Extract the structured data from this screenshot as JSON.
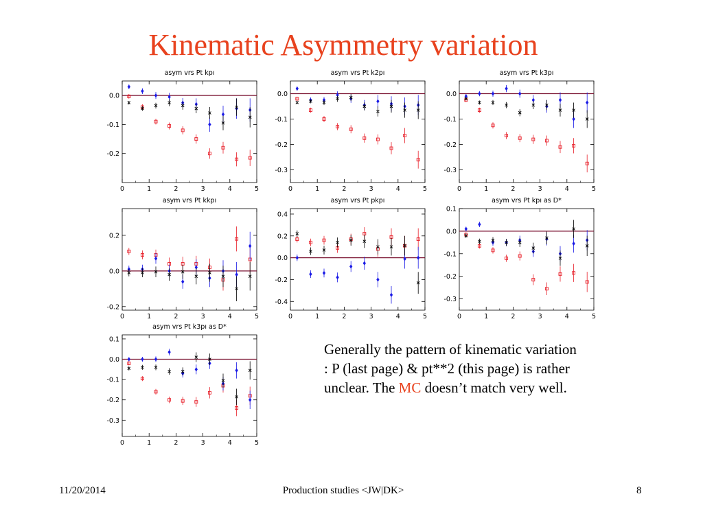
{
  "title": "Kinematic Asymmetry variation",
  "notes": {
    "text_before": "Generally the pattern of kinematic variation : P (last page) & pt**2 (this page) is rather unclear. The ",
    "highlight": "MC",
    "text_after": " doesn’t match very well."
  },
  "footer": {
    "date": "11/20/2014",
    "center": "Production studies <JW|DK>",
    "page": "8"
  },
  "colors": {
    "title": "#e8421e",
    "red_series": "#e8202a",
    "blue_series": "#1a1ae6",
    "black_series": "#000000",
    "zero_line": "#7a1230"
  },
  "chart_data": [
    {
      "type": "scatter",
      "title": "asym vrs Pt kpı",
      "x": [
        0.25,
        0.75,
        1.25,
        1.75,
        2.25,
        2.75,
        3.25,
        3.75,
        4.25,
        4.75
      ],
      "xlim": [
        0,
        5
      ],
      "ylim": [
        -0.3,
        0.05
      ],
      "xticks": [
        "0",
        "1",
        "2",
        "3",
        "4",
        "5"
      ],
      "xtick_values": [
        0,
        1,
        2,
        3,
        4,
        5
      ],
      "yticks": [
        "-0.2",
        "-0.1",
        "0.0"
      ],
      "ytick_values": [
        -0.2,
        -0.1,
        0.0
      ],
      "series": [
        {
          "color": "red",
          "marker": "square",
          "values": [
            -0.003,
            -0.04,
            -0.09,
            -0.105,
            -0.12,
            -0.15,
            -0.2,
            -0.18,
            -0.22,
            -0.215
          ],
          "err": [
            0.008,
            0.01,
            0.01,
            0.012,
            0.014,
            0.016,
            0.018,
            0.02,
            0.024,
            0.028
          ]
        },
        {
          "color": "blue",
          "marker": "diamond",
          "values": [
            0.03,
            0.015,
            0.0,
            -0.005,
            -0.025,
            -0.03,
            -0.1,
            -0.065,
            -0.045,
            -0.05
          ],
          "err": [
            0.008,
            0.01,
            0.012,
            0.014,
            0.016,
            0.02,
            0.025,
            0.03,
            0.035,
            0.04
          ]
        },
        {
          "color": "black",
          "marker": "x",
          "values": [
            -0.025,
            -0.045,
            -0.035,
            -0.025,
            -0.035,
            -0.045,
            -0.06,
            -0.095,
            -0.04,
            -0.075
          ],
          "err": [
            0.006,
            0.008,
            0.01,
            0.012,
            0.014,
            0.016,
            0.02,
            0.025,
            0.03,
            0.035
          ]
        }
      ]
    },
    {
      "type": "scatter",
      "title": "asym vrs Pt k2pı",
      "x": [
        0.25,
        0.75,
        1.25,
        1.75,
        2.25,
        2.75,
        3.25,
        3.75,
        4.25,
        4.75
      ],
      "xlim": [
        0,
        5
      ],
      "ylim": [
        -0.35,
        0.05
      ],
      "xticks": [
        "0",
        "1",
        "2",
        "3",
        "4",
        "5"
      ],
      "xtick_values": [
        0,
        1,
        2,
        3,
        4,
        5
      ],
      "yticks": [
        "-0.3",
        "-0.2",
        "-0.1",
        "0.0"
      ],
      "ytick_values": [
        -0.3,
        -0.2,
        -0.1,
        0.0
      ],
      "series": [
        {
          "color": "red",
          "marker": "square",
          "values": [
            -0.02,
            -0.065,
            -0.1,
            -0.13,
            -0.14,
            -0.175,
            -0.18,
            -0.215,
            -0.165,
            -0.26
          ],
          "err": [
            0.008,
            0.01,
            0.012,
            0.014,
            0.016,
            0.018,
            0.02,
            0.024,
            0.03,
            0.035
          ]
        },
        {
          "color": "blue",
          "marker": "diamond",
          "values": [
            0.02,
            -0.025,
            -0.025,
            -0.005,
            -0.02,
            -0.045,
            -0.03,
            -0.04,
            -0.05,
            -0.045
          ],
          "err": [
            0.008,
            0.01,
            0.012,
            0.014,
            0.016,
            0.02,
            0.025,
            0.03,
            0.035,
            0.04
          ]
        },
        {
          "color": "black",
          "marker": "x",
          "values": [
            -0.035,
            -0.03,
            -0.035,
            -0.02,
            -0.015,
            -0.05,
            -0.07,
            -0.05,
            -0.065,
            -0.065
          ],
          "err": [
            0.006,
            0.008,
            0.01,
            0.012,
            0.014,
            0.016,
            0.02,
            0.025,
            0.03,
            0.035
          ]
        }
      ]
    },
    {
      "type": "scatter",
      "title": "asym vrs Pt k3pı",
      "x": [
        0.25,
        0.75,
        1.25,
        1.75,
        2.25,
        2.75,
        3.25,
        3.75,
        4.25,
        4.75
      ],
      "xlim": [
        0,
        5
      ],
      "ylim": [
        -0.35,
        0.05
      ],
      "xticks": [
        "0",
        "1",
        "2",
        "3",
        "4",
        "5"
      ],
      "xtick_values": [
        0,
        1,
        2,
        3,
        4,
        5
      ],
      "yticks": [
        "-0.3",
        "-0.2",
        "-0.1",
        "0.0"
      ],
      "ytick_values": [
        -0.3,
        -0.2,
        -0.1,
        0.0
      ],
      "series": [
        {
          "color": "red",
          "marker": "square",
          "values": [
            -0.025,
            -0.065,
            -0.125,
            -0.165,
            -0.175,
            -0.18,
            -0.185,
            -0.21,
            -0.205,
            -0.275
          ],
          "err": [
            0.008,
            0.01,
            0.012,
            0.014,
            0.016,
            0.018,
            0.02,
            0.024,
            0.03,
            0.035
          ]
        },
        {
          "color": "blue",
          "marker": "diamond",
          "values": [
            -0.01,
            0.0,
            0.0,
            0.02,
            0.0,
            -0.025,
            -0.05,
            -0.025,
            -0.1,
            -0.035
          ],
          "err": [
            0.008,
            0.01,
            0.012,
            0.014,
            0.016,
            0.02,
            0.025,
            0.03,
            0.035,
            0.04
          ]
        },
        {
          "color": "black",
          "marker": "x",
          "values": [
            -0.02,
            -0.035,
            -0.035,
            -0.045,
            -0.075,
            -0.045,
            -0.045,
            -0.065,
            -0.065,
            -0.1
          ],
          "err": [
            0.006,
            0.008,
            0.01,
            0.012,
            0.014,
            0.016,
            0.02,
            0.025,
            0.03,
            0.035
          ]
        }
      ]
    },
    {
      "type": "scatter",
      "title": "asym vrs Pt kkpı",
      "x": [
        0.25,
        0.75,
        1.25,
        1.75,
        2.25,
        2.75,
        3.25,
        3.75,
        4.25,
        4.75
      ],
      "xlim": [
        0,
        5
      ],
      "ylim": [
        -0.22,
        0.35
      ],
      "xticks": [
        "0",
        "1",
        "2",
        "3",
        "4",
        "5"
      ],
      "xtick_values": [
        0,
        1,
        2,
        3,
        4,
        5
      ],
      "yticks": [
        "-0.2",
        "0.0",
        "0.2"
      ],
      "ytick_values": [
        -0.2,
        0.0,
        0.2
      ],
      "series": [
        {
          "color": "red",
          "marker": "square",
          "values": [
            0.11,
            0.09,
            0.09,
            0.04,
            0.04,
            0.04,
            0.02,
            -0.05,
            0.18,
            0.065
          ],
          "err": [
            0.02,
            0.025,
            0.03,
            0.035,
            0.04,
            0.045,
            0.05,
            0.06,
            0.07,
            0.08
          ]
        },
        {
          "color": "blue",
          "marker": "diamond",
          "values": [
            0.01,
            0.01,
            0.07,
            0.0,
            -0.06,
            0.02,
            -0.04,
            0.0,
            -0.02,
            0.14
          ],
          "err": [
            0.02,
            0.025,
            0.03,
            0.035,
            0.04,
            0.045,
            0.05,
            0.06,
            0.07,
            0.08
          ]
        },
        {
          "color": "black",
          "marker": "x",
          "values": [
            -0.01,
            -0.01,
            -0.005,
            -0.02,
            -0.005,
            -0.03,
            -0.01,
            -0.03,
            -0.1,
            -0.03
          ],
          "err": [
            0.02,
            0.025,
            0.03,
            0.035,
            0.04,
            0.045,
            0.05,
            0.06,
            0.07,
            0.08
          ]
        }
      ]
    },
    {
      "type": "scatter",
      "title": "asym vrs Pt pkpı",
      "x": [
        0.25,
        0.75,
        1.25,
        1.75,
        2.25,
        2.75,
        3.25,
        3.75,
        4.25,
        4.75
      ],
      "xlim": [
        0,
        5
      ],
      "ylim": [
        -0.48,
        0.45
      ],
      "xticks": [
        "0",
        "1",
        "2",
        "3",
        "4",
        "5"
      ],
      "xtick_values": [
        0,
        1,
        2,
        3,
        4,
        5
      ],
      "yticks": [
        "-0.4",
        "-0.2",
        "0.0",
        "0.2",
        "0.4"
      ],
      "ytick_values": [
        -0.4,
        -0.2,
        0.0,
        0.2,
        0.4
      ],
      "series": [
        {
          "color": "red",
          "marker": "square",
          "values": [
            0.17,
            0.14,
            0.16,
            0.09,
            0.17,
            0.22,
            0.08,
            0.19,
            0.11,
            0.17
          ],
          "err": [
            0.03,
            0.035,
            0.04,
            0.045,
            0.05,
            0.06,
            0.07,
            0.08,
            0.09,
            0.1
          ]
        },
        {
          "color": "blue",
          "marker": "diamond",
          "values": [
            0.0,
            -0.15,
            -0.14,
            -0.18,
            -0.08,
            -0.05,
            -0.2,
            -0.34,
            -0.01,
            0.0
          ],
          "err": [
            0.03,
            0.035,
            0.04,
            0.045,
            0.05,
            0.06,
            0.07,
            0.08,
            0.09,
            0.1
          ]
        },
        {
          "color": "black",
          "marker": "x",
          "values": [
            0.22,
            0.06,
            0.07,
            0.14,
            0.16,
            0.15,
            0.1,
            0.1,
            0.11,
            -0.23
          ],
          "err": [
            0.03,
            0.035,
            0.04,
            0.045,
            0.05,
            0.06,
            0.07,
            0.08,
            0.09,
            0.1
          ]
        }
      ]
    },
    {
      "type": "scatter",
      "title": "asym vrs Pt kpı as D*",
      "x": [
        0.25,
        0.75,
        1.25,
        1.75,
        2.25,
        2.75,
        3.25,
        3.75,
        4.25,
        4.75
      ],
      "xlim": [
        0,
        5
      ],
      "ylim": [
        -0.35,
        0.1
      ],
      "xticks": [
        "0",
        "1",
        "2",
        "3",
        "4",
        "5"
      ],
      "xtick_values": [
        0,
        1,
        2,
        3,
        4,
        5
      ],
      "yticks": [
        "-0.3",
        "-0.2",
        "-0.1",
        "0.0",
        "0.1"
      ],
      "ytick_values": [
        -0.3,
        -0.2,
        -0.1,
        0.0,
        0.1
      ],
      "series": [
        {
          "color": "red",
          "marker": "square",
          "values": [
            -0.015,
            -0.065,
            -0.085,
            -0.12,
            -0.11,
            -0.215,
            -0.255,
            -0.19,
            -0.185,
            -0.225
          ],
          "err": [
            0.01,
            0.012,
            0.014,
            0.016,
            0.02,
            0.024,
            0.028,
            0.034,
            0.04,
            0.045
          ]
        },
        {
          "color": "blue",
          "marker": "diamond",
          "values": [
            0.01,
            0.03,
            -0.05,
            -0.05,
            -0.04,
            -0.09,
            -0.035,
            -0.1,
            -0.055,
            -0.04
          ],
          "err": [
            0.01,
            0.012,
            0.014,
            0.016,
            0.02,
            0.024,
            0.028,
            0.034,
            0.04,
            0.045
          ]
        },
        {
          "color": "black",
          "marker": "x",
          "values": [
            -0.02,
            -0.045,
            -0.04,
            -0.05,
            -0.05,
            -0.075,
            -0.03,
            -0.12,
            0.01,
            -0.065
          ],
          "err": [
            0.01,
            0.012,
            0.014,
            0.016,
            0.02,
            0.024,
            0.028,
            0.034,
            0.04,
            0.045
          ]
        }
      ]
    },
    {
      "type": "scatter",
      "title": "asym vrs Pt k3pı as D*",
      "x": [
        0.25,
        0.75,
        1.25,
        1.75,
        2.25,
        2.75,
        3.25,
        3.75,
        4.25,
        4.75
      ],
      "xlim": [
        0,
        5
      ],
      "ylim": [
        -0.38,
        0.12
      ],
      "xticks": [
        "0",
        "1",
        "2",
        "3",
        "4",
        "5"
      ],
      "xtick_values": [
        0,
        1,
        2,
        3,
        4,
        5
      ],
      "yticks": [
        "-0.3",
        "-0.2",
        "-0.1",
        "0.0",
        "0.1"
      ],
      "ytick_values": [
        -0.3,
        -0.2,
        -0.1,
        0.0,
        0.1
      ],
      "series": [
        {
          "color": "red",
          "marker": "square",
          "values": [
            -0.02,
            -0.095,
            -0.16,
            -0.2,
            -0.205,
            -0.21,
            -0.165,
            -0.13,
            -0.24,
            -0.18
          ],
          "err": [
            0.01,
            0.012,
            0.014,
            0.016,
            0.02,
            0.024,
            0.028,
            0.034,
            0.04,
            0.045
          ]
        },
        {
          "color": "blue",
          "marker": "diamond",
          "values": [
            0.0,
            0.0,
            0.0,
            0.035,
            -0.07,
            -0.05,
            -0.02,
            -0.12,
            -0.055,
            -0.2
          ],
          "err": [
            0.01,
            0.012,
            0.014,
            0.016,
            0.02,
            0.024,
            0.028,
            0.034,
            0.04,
            0.045
          ]
        },
        {
          "color": "black",
          "marker": "x",
          "values": [
            -0.045,
            -0.04,
            -0.04,
            -0.06,
            -0.06,
            0.01,
            0.0,
            -0.105,
            -0.185,
            -0.055
          ],
          "err": [
            0.01,
            0.012,
            0.014,
            0.016,
            0.02,
            0.024,
            0.028,
            0.034,
            0.04,
            0.045
          ]
        }
      ]
    }
  ]
}
